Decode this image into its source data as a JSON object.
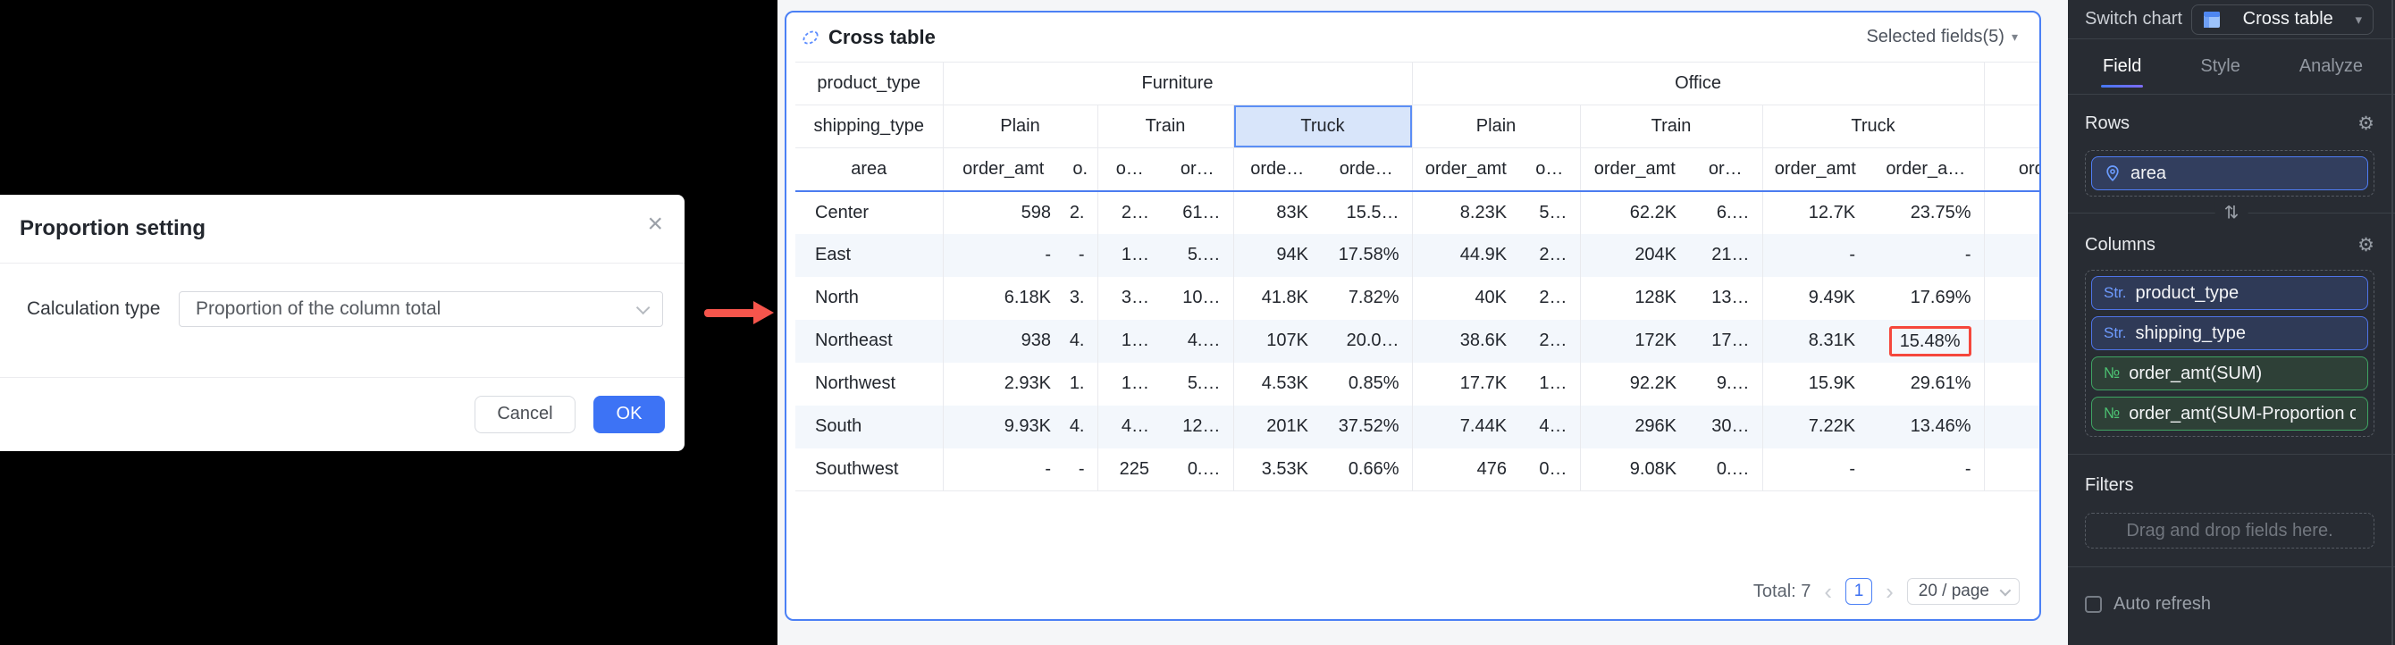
{
  "colors": {
    "accent_blue": "#4b80f5",
    "header_underline_blue": "#4c7cf0",
    "selected_column_fill": "#d8e5fa",
    "highlight_red": "#f5473c",
    "arrow_red": "#f6554c",
    "pill_blue": "#4f74e8",
    "pill_green": "#3fa463",
    "ok_button_blue": "#3d73f5",
    "panel_background": "#282c33"
  },
  "modal": {
    "title": "Proportion setting",
    "close": "×",
    "field_label": "Calculation type",
    "select_value": "Proportion of the column total",
    "cancel": "Cancel",
    "ok": "OK"
  },
  "card": {
    "title": "Cross table",
    "selected_fields": "Selected fields(5)",
    "selected_fields_caret": "▾",
    "pagination": {
      "total": "Total: 7",
      "prev": "‹",
      "page": "1",
      "next": "›",
      "page_size": "20 / page"
    }
  },
  "table": {
    "corner": [
      "product_type",
      "shipping_type",
      "area"
    ],
    "products": [
      {
        "label": "Furniture",
        "ships": [
          {
            "label": "Plain",
            "selected": false,
            "cols": [
              "order_amt",
              "o."
            ]
          },
          {
            "label": "Train",
            "selected": false,
            "cols": [
              "o…",
              "or…"
            ]
          },
          {
            "label": "Truck",
            "selected": true,
            "cols": [
              "orde…",
              "orde…"
            ]
          }
        ]
      },
      {
        "label": "Office",
        "ships": [
          {
            "label": "Plain",
            "selected": false,
            "cols": [
              "order_amt",
              "o…"
            ]
          },
          {
            "label": "Train",
            "selected": false,
            "cols": [
              "order_amt",
              "or…"
            ]
          },
          {
            "label": "Truck",
            "selected": false,
            "cols": [
              "order_amt",
              "order_a…"
            ]
          }
        ]
      },
      {
        "label": "",
        "ships": [
          {
            "label": "",
            "selected": false,
            "cols": [
              "ord"
            ]
          }
        ]
      }
    ],
    "rows": [
      {
        "label": "Center",
        "values": [
          "598",
          "2.",
          "2…",
          "61…",
          "83K",
          "15.5…",
          "8.23K",
          "5…",
          "62.2K",
          "6.…",
          "12.7K",
          "23.75%",
          ""
        ]
      },
      {
        "label": "East",
        "values": [
          "-",
          "-",
          "1…",
          "5.…",
          "94K",
          "17.58%",
          "44.9K",
          "2…",
          "204K",
          "21…",
          "-",
          "-",
          ""
        ]
      },
      {
        "label": "North",
        "values": [
          "6.18K",
          "3.",
          "3…",
          "10…",
          "41.8K",
          "7.82%",
          "40K",
          "2…",
          "128K",
          "13…",
          "9.49K",
          "17.69%",
          ""
        ]
      },
      {
        "label": "Northeast",
        "values": [
          "938",
          "4.",
          "1…",
          "4.…",
          "107K",
          "20.0…",
          "38.6K",
          "2…",
          "172K",
          "17…",
          "8.31K",
          "15.48%",
          ""
        ]
      },
      {
        "label": "Northwest",
        "values": [
          "2.93K",
          "1.",
          "1…",
          "5.…",
          "4.53K",
          "0.85%",
          "17.7K",
          "1…",
          "92.2K",
          "9.…",
          "15.9K",
          "29.61%",
          ""
        ]
      },
      {
        "label": "South",
        "values": [
          "9.93K",
          "4.",
          "4…",
          "12…",
          "201K",
          "37.52%",
          "7.44K",
          "4…",
          "296K",
          "30…",
          "7.22K",
          "13.46%",
          ""
        ]
      },
      {
        "label": "Southwest",
        "values": [
          "-",
          "-",
          "225",
          "0.…",
          "3.53K",
          "0.66%",
          "476",
          "0…",
          "9.08K",
          "0.…",
          "-",
          "-",
          ""
        ]
      }
    ],
    "highlight": {
      "row": 3,
      "col": 11
    }
  },
  "panel": {
    "switch_chart_label": "Switch chart",
    "chart_type": "Cross table",
    "tabs": [
      "Field",
      "Style",
      "Analyze"
    ],
    "active_tab": "Field",
    "rows_section": {
      "label": "Rows",
      "fields": [
        {
          "type": "geo",
          "label": "area"
        }
      ]
    },
    "columns_section": {
      "label": "Columns",
      "fields": [
        {
          "type": "str",
          "prefix": "Str.",
          "label": "product_type"
        },
        {
          "type": "str",
          "prefix": "Str.",
          "label": "shipping_type"
        },
        {
          "type": "num",
          "prefix": "№",
          "label": "order_amt(SUM)"
        },
        {
          "type": "num",
          "prefix": "№",
          "label": "order_amt(SUM-Proportion of t…"
        }
      ]
    },
    "filters_section": {
      "label": "Filters",
      "placeholder": "Drag and drop fields here."
    },
    "auto_refresh_label": "Auto refresh",
    "swap_icon": "⇅",
    "gear_icon": "⚙"
  }
}
